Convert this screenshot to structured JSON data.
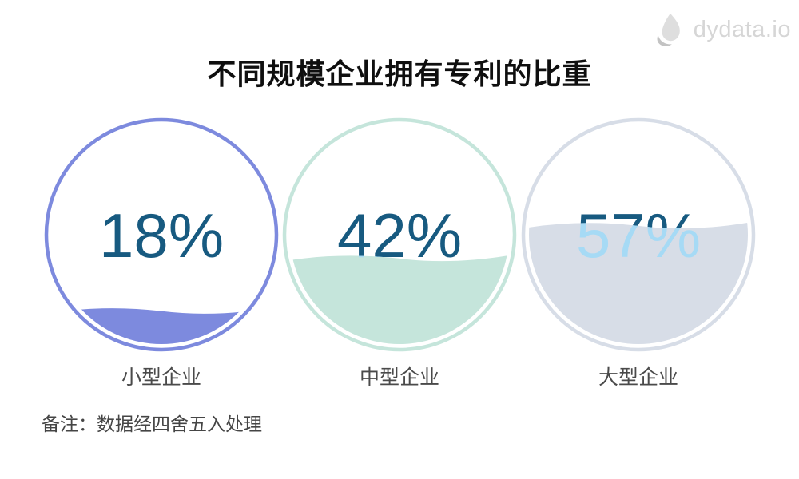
{
  "logo": {
    "text": "dydata.io",
    "icon": "water-drop-icon",
    "text_color": "#d6d6d6",
    "icon_colors": [
      "#dedede",
      "#c3c3c3"
    ]
  },
  "title": "不同规模企业拥有专利的比重",
  "note": "备注：数据经四舍五入处理",
  "chart_data": {
    "type": "liquid-fill-gauge",
    "title": "不同规模企业拥有专利的比重",
    "categories": [
      "小型企业",
      "中型企业",
      "大型企业"
    ],
    "values": [
      18,
      42,
      57
    ],
    "value_labels": [
      "18%",
      "42%",
      "57%"
    ],
    "unit": "%",
    "colors": [
      "#7d8ade",
      "#c5e5db",
      "#d7dde7"
    ],
    "value_text_color": "#175a80",
    "submerged_text_color": "#a6daf5",
    "label_color": "#4a4a4a",
    "annotation": "备注：数据经四舍五入处理",
    "legend_position": "none",
    "grid": false
  }
}
